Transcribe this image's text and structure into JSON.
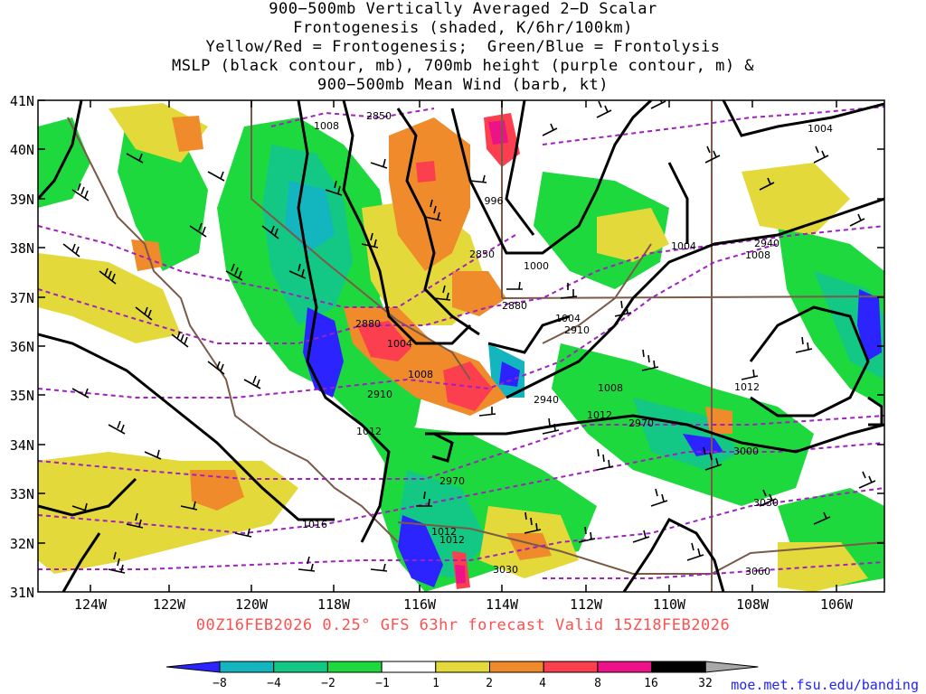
{
  "title": {
    "lines": [
      "900−500mb Vertically Averaged 2−D Scalar",
      "Frontogenesis (shaded, K/6hr/100km)",
      "Yellow/Red = Frontogenesis;  Green/Blue = Frontolysis",
      "MSLP (black contour, mb), 700mb height (purple contour, m) &",
      "900−500mb Mean Wind (barb, kt)"
    ]
  },
  "valid_line": "00Z16FEB2026 0.25° GFS 63hr forecast Valid 15Z18FEB2026",
  "credit": "moe.met.fsu.edu/banding",
  "map": {
    "lat_labels": [
      "41N",
      "40N",
      "39N",
      "38N",
      "37N",
      "36N",
      "35N",
      "34N",
      "33N",
      "32N",
      "31N"
    ],
    "lon_labels": [
      "124W",
      "122W",
      "120W",
      "118W",
      "116W",
      "114W",
      "112W",
      "110W",
      "108W",
      "106W"
    ],
    "mslp_labels": [
      "1008",
      "996",
      "1000",
      "1004",
      "1008",
      "1012",
      "1004",
      "1012",
      "1008",
      "1012",
      "1004",
      "1008",
      "1004",
      "1012",
      "1016",
      "1012"
    ],
    "height_labels": [
      "2850",
      "2850",
      "2880",
      "2880",
      "2910",
      "2910",
      "2940",
      "2970",
      "2970",
      "3000",
      "3030",
      "3030",
      "3060",
      "2940"
    ]
  },
  "colorbar": {
    "labels": [
      "−8",
      "−4",
      "−2",
      "−1",
      "1",
      "2",
      "4",
      "8",
      "16",
      "32"
    ],
    "colors": [
      "#2b24ff",
      "#13b5bf",
      "#13c784",
      "#1ed93d",
      "#ffffff",
      "#e3d93a",
      "#f08b2b",
      "#fb3f4e",
      "#ee1288",
      "#000000",
      "#a8a8a8"
    ]
  }
}
